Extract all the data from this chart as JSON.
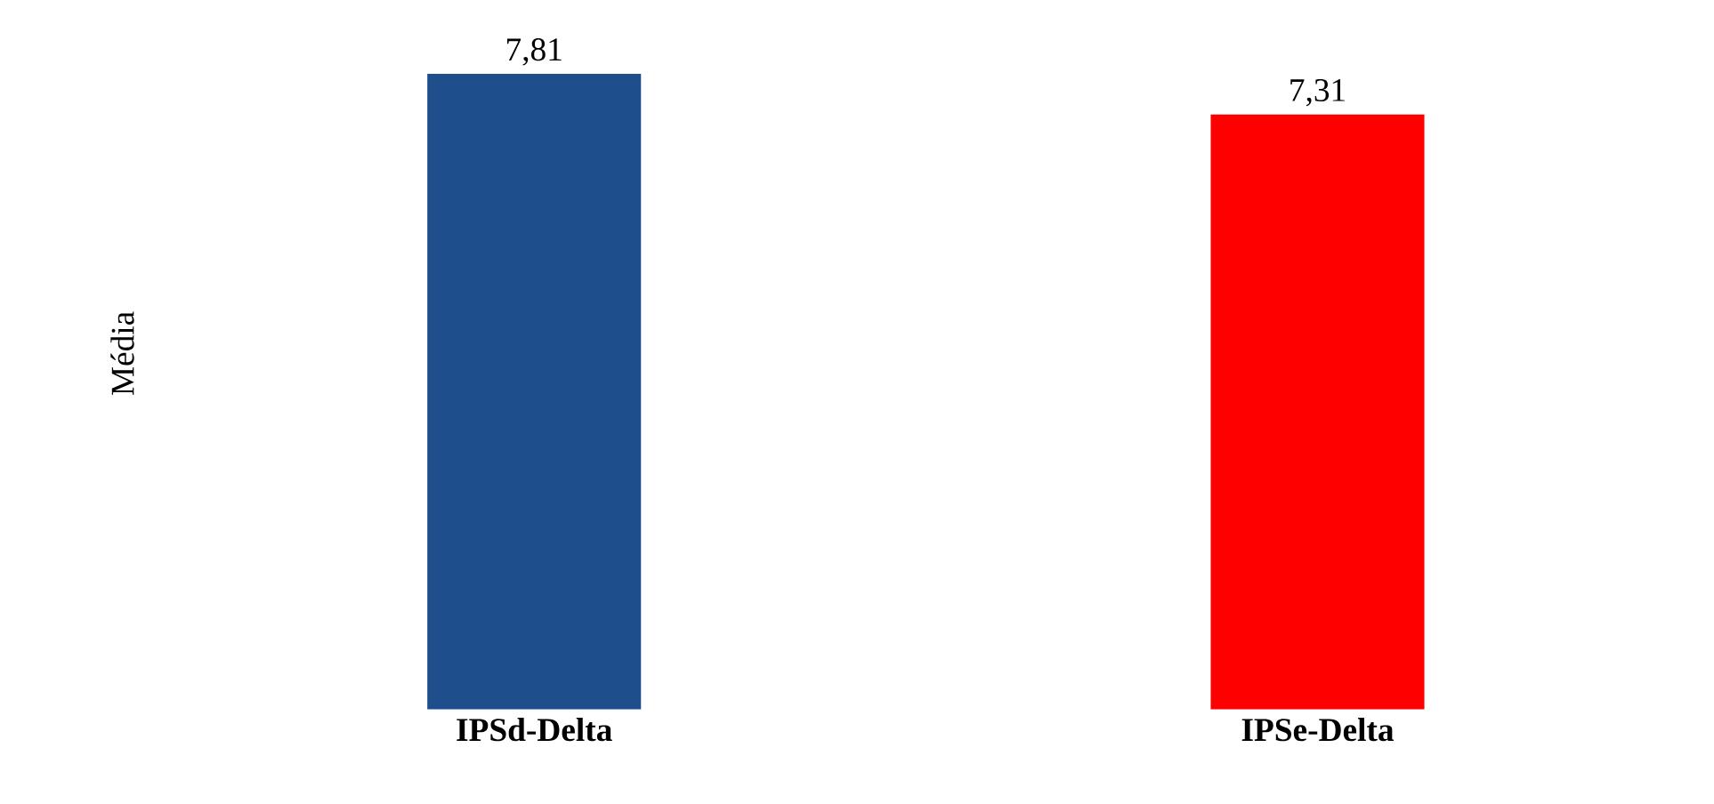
{
  "chart_data": {
    "type": "bar",
    "ylabel": "Média",
    "categories": [
      "IPSd-Delta",
      "IPSe-Delta"
    ],
    "values": [
      7.81,
      7.31
    ],
    "colors": [
      "#1f4e8c",
      "#ff0000"
    ],
    "value_labels": [
      "7,81",
      "7,31"
    ]
  }
}
